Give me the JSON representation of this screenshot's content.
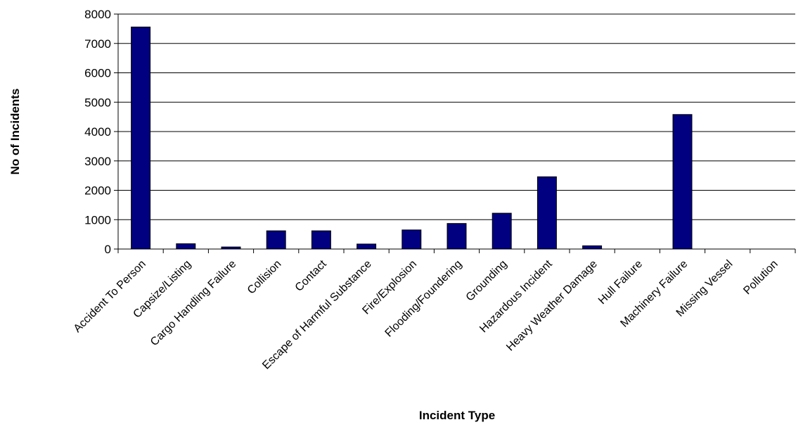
{
  "chart_data": {
    "type": "bar",
    "title": "",
    "xlabel": "Incident Type",
    "ylabel": "No of Incidents",
    "ylim": [
      0,
      8000
    ],
    "yticks": [
      "0",
      "1000",
      "2000",
      "3000",
      "4000",
      "5000",
      "6000",
      "7000",
      "8000"
    ],
    "grid": true,
    "categories": [
      "Accident To Person",
      "Capsize/Listing",
      "Cargo Handling Failure",
      "Collision",
      "Contact",
      "Escape of Harmful Substance",
      "Fire/Explosion",
      "Flooding/Foundering",
      "Grounding",
      "Hazardous Incident",
      "Heavy Weather Damage",
      "Hull Failure",
      "Machinery Failure",
      "Missing Vessel",
      "Pollution"
    ],
    "values": [
      7560,
      180,
      70,
      620,
      620,
      170,
      650,
      870,
      1220,
      2460,
      110,
      0,
      4580,
      0,
      0
    ],
    "bar_color": "#000080"
  }
}
